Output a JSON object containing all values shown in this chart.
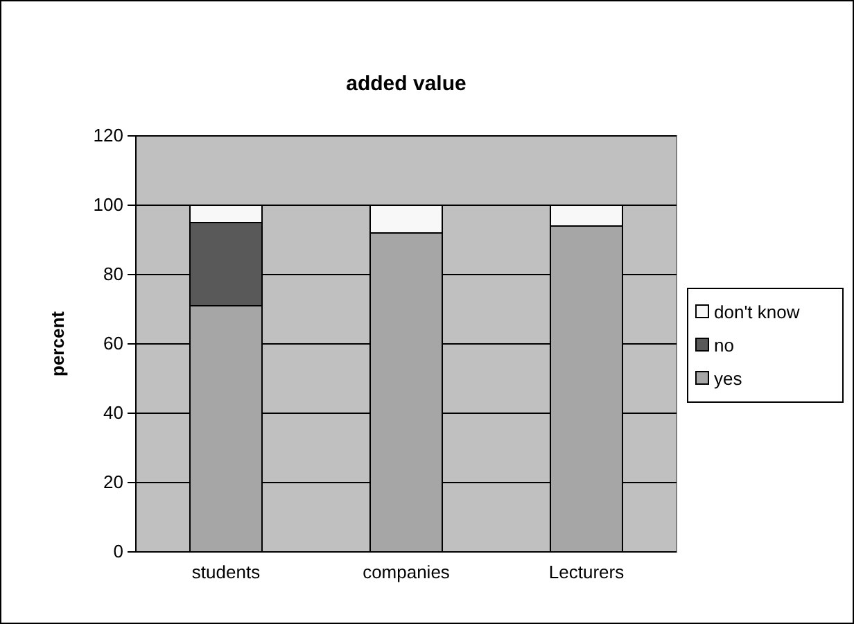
{
  "chart_data": {
    "type": "bar",
    "title": "added value",
    "ylabel": "percent",
    "categories": [
      "students",
      "companies",
      "Lecturers"
    ],
    "stacked": true,
    "ylim": [
      0,
      120
    ],
    "yticks": [
      0,
      20,
      40,
      60,
      80,
      100,
      120
    ],
    "grid": "y",
    "legend": "right",
    "series": [
      {
        "name": "yes",
        "color": "#a6a6a6",
        "values": [
          71,
          92,
          94
        ]
      },
      {
        "name": "no",
        "color": "#595959",
        "values": [
          24,
          0,
          0
        ]
      },
      {
        "name": "don't know",
        "color": "#f8f8f8",
        "values": [
          5,
          8,
          6
        ]
      }
    ]
  }
}
